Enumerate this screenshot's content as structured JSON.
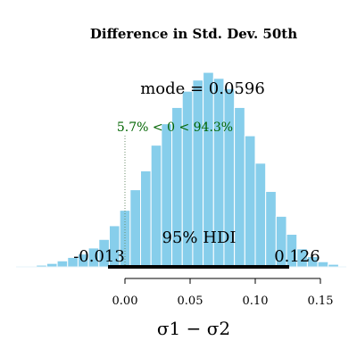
{
  "chart_data": {
    "type": "histogram",
    "title": "Difference in Std. Dev. 50th",
    "xlabel": "σ1 − σ2",
    "ylabel": "",
    "xlim": [
      -0.1,
      0.18
    ],
    "x_ticks": [
      0.0,
      0.05,
      0.1,
      0.15
    ],
    "x_tick_labels": [
      "0.00",
      "0.05",
      "0.10",
      "0.15"
    ],
    "bin_width": 0.008,
    "bins": [
      {
        "x0": -0.068,
        "count": 0.02
      },
      {
        "x0": -0.06,
        "count": 0.04
      },
      {
        "x0": -0.052,
        "count": 0.07
      },
      {
        "x0": -0.044,
        "count": 0.11
      },
      {
        "x0": -0.036,
        "count": 0.15
      },
      {
        "x0": -0.028,
        "count": 0.22
      },
      {
        "x0": -0.02,
        "count": 0.32
      },
      {
        "x0": -0.012,
        "count": 0.48
      },
      {
        "x0": -0.004,
        "count": 0.66
      },
      {
        "x0": 0.004,
        "count": 0.9
      },
      {
        "x0": 0.012,
        "count": 1.12
      },
      {
        "x0": 0.02,
        "count": 1.42
      },
      {
        "x0": 0.028,
        "count": 1.67
      },
      {
        "x0": 0.036,
        "count": 1.86
      },
      {
        "x0": 0.044,
        "count": 2.05
      },
      {
        "x0": 0.052,
        "count": 2.18
      },
      {
        "x0": 0.06,
        "count": 2.27
      },
      {
        "x0": 0.068,
        "count": 2.2
      },
      {
        "x0": 0.076,
        "count": 2.08
      },
      {
        "x0": 0.084,
        "count": 1.86
      },
      {
        "x0": 0.092,
        "count": 1.53
      },
      {
        "x0": 0.1,
        "count": 1.21
      },
      {
        "x0": 0.108,
        "count": 0.88
      },
      {
        "x0": 0.116,
        "count": 0.59
      },
      {
        "x0": 0.124,
        "count": 0.38
      },
      {
        "x0": 0.132,
        "count": 0.21
      },
      {
        "x0": 0.14,
        "count": 0.12
      },
      {
        "x0": 0.148,
        "count": 0.06
      },
      {
        "x0": 0.156,
        "count": 0.03
      },
      {
        "x0": 0.164,
        "count": 0.01
      }
    ],
    "ylim": [
      0,
      2.4
    ],
    "mode_label": "mode = 0.0596",
    "comparison": {
      "value": 0,
      "label": "5.7% < 0 < 94.3%"
    },
    "hdi": {
      "low": -0.013,
      "high": 0.126,
      "label": "95% HDI",
      "low_label": "-0.013",
      "high_label": "0.126"
    },
    "bar_color": "#87CEEB",
    "bar_edge_color": "#ffffff",
    "comparison_color": "#006400",
    "hdi_color": "#000000"
  }
}
